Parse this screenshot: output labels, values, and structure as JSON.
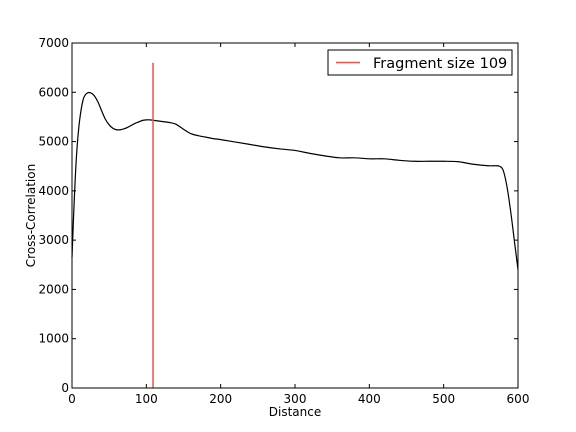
{
  "chart_data": {
    "type": "line",
    "title": "",
    "xlabel": "Distance",
    "ylabel": "Cross-Correlation",
    "xlim": [
      0,
      600
    ],
    "ylim": [
      0,
      7000
    ],
    "xticks": [
      "0",
      "100",
      "200",
      "300",
      "400",
      "500",
      "600"
    ],
    "yticks": [
      "0",
      "1000",
      "2000",
      "3000",
      "4000",
      "5000",
      "6000",
      "7000"
    ],
    "grid": false,
    "legend_position": "top-right",
    "series": [
      {
        "color": "#000000",
        "x": [
          0,
          3,
          6,
          10,
          15,
          20,
          25,
          30,
          35,
          40,
          45,
          50,
          55,
          60,
          65,
          70,
          75,
          80,
          85,
          90,
          95,
          100,
          105,
          110,
          115,
          120,
          130,
          140,
          150,
          160,
          170,
          180,
          190,
          200,
          220,
          240,
          260,
          280,
          300,
          320,
          340,
          360,
          380,
          400,
          420,
          440,
          460,
          480,
          500,
          520,
          540,
          560,
          570,
          575,
          580,
          585,
          590,
          595,
          600
        ],
        "y": [
          2650,
          3800,
          4700,
          5400,
          5850,
          5980,
          5990,
          5930,
          5800,
          5620,
          5450,
          5340,
          5270,
          5240,
          5240,
          5260,
          5290,
          5330,
          5370,
          5400,
          5430,
          5440,
          5440,
          5430,
          5420,
          5410,
          5390,
          5350,
          5250,
          5160,
          5120,
          5090,
          5060,
          5040,
          4990,
          4940,
          4890,
          4850,
          4820,
          4760,
          4710,
          4670,
          4670,
          4650,
          4650,
          4620,
          4600,
          4600,
          4600,
          4590,
          4540,
          4510,
          4510,
          4500,
          4420,
          4100,
          3600,
          3000,
          2400
        ]
      },
      {
        "name": "Fragment size 109",
        "color": "#e5564c",
        "x": [
          109,
          109
        ],
        "y": [
          0,
          6600
        ]
      }
    ]
  }
}
